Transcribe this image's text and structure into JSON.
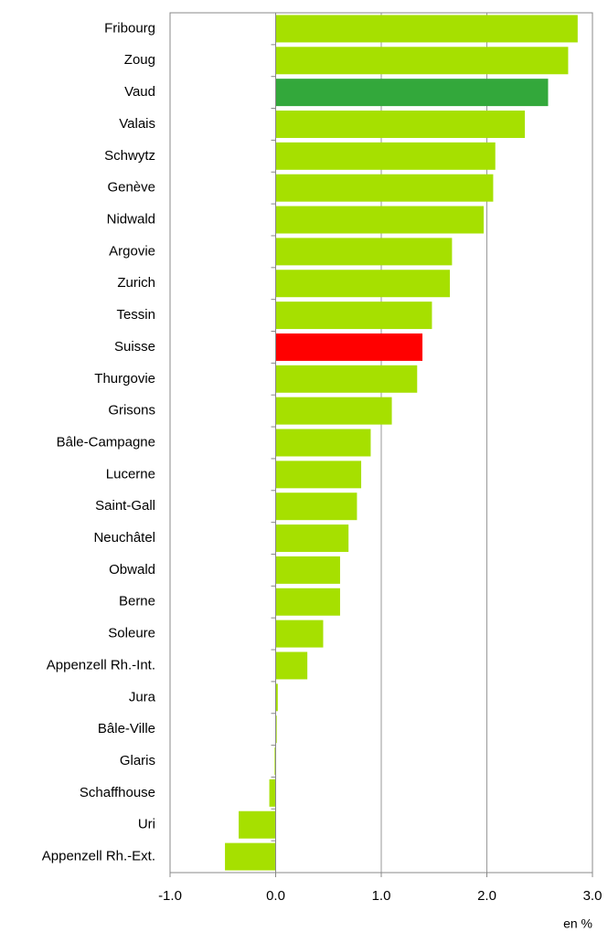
{
  "chart_data": {
    "type": "hbar",
    "categories": [
      "Fribourg",
      "Zoug",
      "Vaud",
      "Valais",
      "Schwytz",
      "Genève",
      "Nidwald",
      "Argovie",
      "Zurich",
      "Tessin",
      "Suisse",
      "Thurgovie",
      "Grisons",
      "Bâle-Campagne",
      "Lucerne",
      "Saint-Gall",
      "Neuchâtel",
      "Obwald",
      "Berne",
      "Soleure",
      "Appenzell Rh.-Int.",
      "Jura",
      "Bâle-Ville",
      "Glaris",
      "Schaffhouse",
      "Uri",
      "Appenzell Rh.-Ext."
    ],
    "values": [
      2.86,
      2.77,
      2.58,
      2.36,
      2.08,
      2.06,
      1.97,
      1.67,
      1.65,
      1.48,
      1.39,
      1.34,
      1.1,
      0.9,
      0.81,
      0.77,
      0.69,
      0.61,
      0.61,
      0.45,
      0.3,
      0.02,
      0.01,
      -0.01,
      -0.06,
      -0.35,
      -0.48
    ],
    "colors": [
      "#a6e000",
      "#a6e000",
      "#33a83b",
      "#a6e000",
      "#a6e000",
      "#a6e000",
      "#a6e000",
      "#a6e000",
      "#a6e000",
      "#a6e000",
      "#ff0000",
      "#a6e000",
      "#a6e000",
      "#a6e000",
      "#a6e000",
      "#a6e000",
      "#a6e000",
      "#a6e000",
      "#a6e000",
      "#a6e000",
      "#a6e000",
      "#a6e000",
      "#a6e000",
      "#a6e000",
      "#a6e000",
      "#a6e000",
      "#a6e000"
    ],
    "xlim": [
      -1,
      3
    ],
    "xticks": [
      {
        "value": -1,
        "label": "-1.0"
      },
      {
        "value": 0,
        "label": "0.0"
      },
      {
        "value": 1,
        "label": "1.0"
      },
      {
        "value": 2,
        "label": "2.0"
      },
      {
        "value": 3,
        "label": "3.0"
      }
    ],
    "xlabel": "en %",
    "grid": true
  }
}
